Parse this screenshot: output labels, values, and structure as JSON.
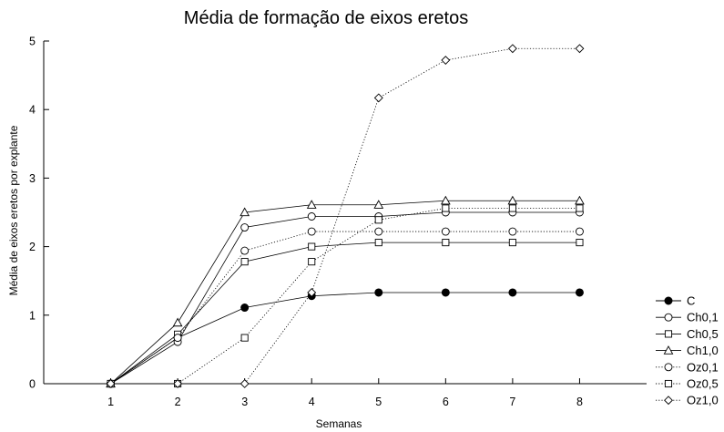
{
  "chart_data": {
    "type": "line",
    "title": "Média de formação de eixos eretos",
    "xlabel": "Semanas",
    "ylabel": "Média de eixos eretos por explante",
    "x": [
      1,
      2,
      3,
      4,
      5,
      6,
      7,
      8
    ],
    "xlim": [
      0,
      9
    ],
    "ylim": [
      0,
      5
    ],
    "yticks": [
      0,
      1,
      2,
      3,
      4,
      5
    ],
    "grid": false,
    "legend_position": "right-bottom",
    "series": [
      {
        "name": "C",
        "marker": "filled-circle",
        "line": "solid",
        "values": [
          0,
          0.67,
          1.11,
          1.28,
          1.33,
          1.33,
          1.33,
          1.33
        ]
      },
      {
        "name": "Ch0,1",
        "marker": "open-circle",
        "line": "solid",
        "values": [
          0,
          0.61,
          2.28,
          2.44,
          2.44,
          2.5,
          2.5,
          2.5
        ]
      },
      {
        "name": "Ch0,5",
        "marker": "open-square",
        "line": "solid",
        "values": [
          0,
          0.72,
          1.78,
          2.0,
          2.06,
          2.06,
          2.06,
          2.06
        ]
      },
      {
        "name": "Ch1,0",
        "marker": "open-triangle",
        "line": "solid",
        "values": [
          0,
          0.89,
          2.5,
          2.61,
          2.61,
          2.67,
          2.67,
          2.67
        ]
      },
      {
        "name": "Oz0,1",
        "marker": "open-circle",
        "line": "dotted",
        "values": [
          0,
          0.67,
          1.94,
          2.22,
          2.22,
          2.22,
          2.22,
          2.22
        ]
      },
      {
        "name": "Oz0,5",
        "marker": "open-square",
        "line": "dotted",
        "values": [
          0,
          0,
          0.67,
          1.78,
          2.39,
          2.56,
          2.56,
          2.56
        ]
      },
      {
        "name": "Oz1,0",
        "marker": "open-diamond",
        "line": "dotted",
        "values": [
          0,
          0,
          0,
          1.33,
          4.17,
          4.72,
          4.89,
          4.89
        ]
      }
    ]
  }
}
